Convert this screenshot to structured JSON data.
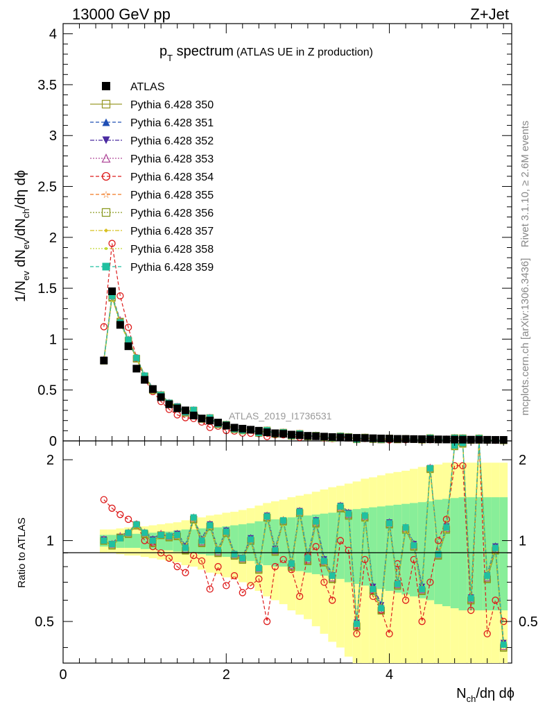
{
  "header": {
    "left": "13000 GeV pp",
    "right": "Z+Jet"
  },
  "side_labels": {
    "rivet": "Rivet 3.1.10, ≥ 2.6M events",
    "mcplots": "mcplots.cern.ch [arXiv:1306.3436]"
  },
  "chart_data": {
    "type": "line",
    "title_main": "p",
    "title_sub": "T",
    "title_rest": " spectrum",
    "title_paren": "(ATLAS UE in Z production)",
    "watermark": "ATLAS_2019_I1736531",
    "xlabel": "N",
    "xlabel_sub": "ch",
    "xlabel_rest": "/dη dϕ",
    "ylabel_top": "1/N",
    "ylabel_ratio": "Ratio to ATLAS",
    "xlim": [
      0,
      5.5
    ],
    "ylim_top": [
      0,
      4.1
    ],
    "ylim_ratio": [
      0.35,
      2.35
    ],
    "xticks": [
      "0",
      "2",
      "4"
    ],
    "yticks_top": [
      "0",
      "0.5",
      "1",
      "1.5",
      "2",
      "2.5",
      "3",
      "3.5",
      "4"
    ],
    "yticks_ratio": [
      "0.5",
      "1",
      "2"
    ],
    "legend": [
      {
        "name": "ATLAS",
        "color": "#000000",
        "marker": "square-filled",
        "dash": ""
      },
      {
        "name": "Pythia 6.428 350",
        "color": "#9a9a2a",
        "marker": "square-open",
        "dash": ""
      },
      {
        "name": "Pythia 6.428 351",
        "color": "#1f4fb5",
        "marker": "triangle-up",
        "dash": "5,3"
      },
      {
        "name": "Pythia 6.428 352",
        "color": "#4a2aa0",
        "marker": "triangle-down",
        "dash": "6,2,2,2"
      },
      {
        "name": "Pythia 6.428 353",
        "color": "#b04a9a",
        "marker": "triangle-open",
        "dash": "2,2"
      },
      {
        "name": "Pythia 6.428 354",
        "color": "#dd1a1a",
        "marker": "circle-open",
        "dash": "5,3"
      },
      {
        "name": "Pythia 6.428 355",
        "color": "#f07820",
        "marker": "star",
        "dash": "5,3"
      },
      {
        "name": "Pythia 6.428 356",
        "color": "#8a9a20",
        "marker": "square-open",
        "dash": "2,2"
      },
      {
        "name": "Pythia 6.428 357",
        "color": "#d8c020",
        "marker": "diamond",
        "dash": "6,2,2,2"
      },
      {
        "name": "Pythia 6.428 358",
        "color": "#c0d830",
        "marker": "dot",
        "dash": "2,2"
      },
      {
        "name": "Pythia 6.428 359",
        "color": "#20c0a0",
        "marker": "square-filled",
        "dash": "5,3"
      }
    ],
    "x": [
      0.5,
      0.6,
      0.7,
      0.8,
      0.9,
      1.0,
      1.1,
      1.2,
      1.3,
      1.4,
      1.5,
      1.6,
      1.7,
      1.8,
      1.9,
      2.0,
      2.1,
      2.2,
      2.3,
      2.4,
      2.5,
      2.6,
      2.7,
      2.8,
      2.9,
      3.0,
      3.1,
      3.2,
      3.3,
      3.4,
      3.5,
      3.6,
      3.7,
      3.8,
      3.9,
      4.0,
      4.1,
      4.2,
      4.3,
      4.4,
      4.5,
      4.6,
      4.7,
      4.8,
      4.9,
      5.0,
      5.1,
      5.2,
      5.3,
      5.4
    ],
    "atlas": [
      0.79,
      1.47,
      1.14,
      0.93,
      0.71,
      0.6,
      0.51,
      0.43,
      0.36,
      0.32,
      0.3,
      0.25,
      0.22,
      0.2,
      0.18,
      0.15,
      0.13,
      0.12,
      0.11,
      0.1,
      0.085,
      0.075,
      0.07,
      0.062,
      0.056,
      0.05,
      0.046,
      0.042,
      0.038,
      0.035,
      0.032,
      0.03,
      0.028,
      0.026,
      0.024,
      0.022,
      0.02,
      0.019,
      0.018,
      0.017,
      0.016,
      0.015,
      0.014,
      0.013,
      0.012,
      0.012,
      0.011,
      0.011,
      0.01,
      0.01
    ],
    "ratio_bands": {
      "green_half": [
        0.05,
        0.05,
        0.06,
        0.06,
        0.06,
        0.07,
        0.07,
        0.08,
        0.08,
        0.09,
        0.1,
        0.1,
        0.11,
        0.12,
        0.12,
        0.13,
        0.14,
        0.15,
        0.16,
        0.18,
        0.19,
        0.2,
        0.2,
        0.22,
        0.23,
        0.24,
        0.25,
        0.26,
        0.27,
        0.28,
        0.3,
        0.31,
        0.32,
        0.33,
        0.34,
        0.35,
        0.36,
        0.37,
        0.38,
        0.39,
        0.4,
        0.42,
        0.43,
        0.44,
        0.45,
        0.45,
        0.45,
        0.45,
        0.45,
        0.45
      ],
      "yellow_half": [
        0.1,
        0.1,
        0.11,
        0.12,
        0.12,
        0.13,
        0.14,
        0.15,
        0.16,
        0.17,
        0.19,
        0.2,
        0.22,
        0.24,
        0.25,
        0.27,
        0.28,
        0.3,
        0.32,
        0.35,
        0.38,
        0.4,
        0.42,
        0.45,
        0.47,
        0.49,
        0.52,
        0.55,
        0.58,
        0.6,
        0.63,
        0.66,
        0.7,
        0.72,
        0.75,
        0.78,
        0.8,
        0.82,
        0.85,
        0.88,
        0.9,
        0.92,
        0.95,
        0.95,
        0.95,
        0.95,
        0.95,
        0.95,
        0.95,
        0.95
      ]
    },
    "ratios": {
      "Pythia 6.428 350": [
        1.0,
        0.96,
        1.03,
        1.06,
        1.14,
        1.06,
        0.98,
        1.05,
        1.03,
        1.04,
        0.92,
        1.2,
        0.98,
        1.13,
        0.9,
        1.07,
        0.88,
        0.85,
        1.0,
        0.78,
        1.22,
        0.91,
        1.18,
        0.8,
        1.27,
        0.84,
        1.16,
        0.83,
        0.72,
        1.32,
        1.24,
        0.48,
        1.22,
        0.65,
        0.55,
        1.15,
        0.68,
        1.1,
        0.95,
        0.65,
        1.85,
        0.88,
        1.1,
        2.25,
        2.3,
        0.6,
        2.4,
        0.72,
        0.92,
        0.4
      ],
      "Pythia 6.428 351": [
        1.02,
        0.98,
        1.04,
        1.08,
        1.16,
        1.08,
        1.02,
        1.06,
        1.05,
        1.07,
        0.96,
        1.23,
        1.02,
        1.16,
        0.93,
        1.1,
        0.9,
        0.87,
        1.03,
        0.8,
        1.25,
        0.94,
        1.2,
        0.83,
        1.3,
        0.88,
        1.2,
        0.86,
        0.75,
        1.36,
        1.28,
        0.5,
        1.25,
        0.68,
        0.58,
        1.18,
        0.7,
        1.13,
        0.98,
        0.68,
        1.88,
        0.9,
        1.14,
        2.28,
        2.32,
        0.62,
        2.4,
        0.75,
        0.96,
        0.42
      ],
      "Pythia 6.428 354": [
        1.42,
        1.32,
        1.25,
        1.2,
        1.15,
        1.0,
        0.95,
        0.9,
        0.86,
        0.8,
        0.76,
        0.88,
        0.84,
        0.66,
        0.8,
        0.68,
        0.74,
        0.64,
        0.68,
        0.72,
        0.5,
        0.8,
        0.85,
        0.78,
        0.62,
        0.88,
        0.95,
        0.7,
        0.6,
        1.0,
        0.92,
        0.45,
        0.85,
        0.62,
        0.55,
        0.45,
        0.82,
        0.6,
        0.85,
        0.5,
        0.7,
        1.0,
        1.2,
        1.9,
        1.9,
        0.55,
        2.4,
        0.45,
        0.6,
        0.5
      ],
      "Pythia 6.428 359": [
        1.0,
        0.97,
        1.02,
        1.07,
        1.15,
        1.07,
        1.0,
        1.05,
        1.04,
        1.05,
        0.94,
        1.22,
        1.0,
        1.14,
        0.92,
        1.08,
        0.89,
        0.86,
        1.01,
        0.79,
        1.23,
        0.92,
        1.19,
        0.82,
        1.28,
        0.86,
        1.18,
        0.84,
        0.74,
        1.34,
        1.26,
        0.49,
        1.24,
        0.66,
        0.56,
        1.16,
        0.69,
        1.12,
        0.96,
        0.66,
        1.86,
        0.89,
        1.12,
        2.26,
        2.31,
        0.61,
        2.4,
        0.74,
        0.94,
        0.41
      ]
    },
    "top_scale": {
      "Pythia 6.428 350": [
        1.0,
        0.96,
        1.03,
        1.06,
        1.14,
        1.06,
        0.98,
        1.05,
        1.03,
        1.04,
        0.92,
        1.06,
        0.98,
        1.03,
        0.96,
        1.04
      ],
      "Pythia 6.428 354": [
        1.36,
        1.2,
        1.2,
        1.13,
        1.08,
        0.97,
        0.9,
        0.86,
        0.82,
        0.78,
        0.72,
        0.78,
        0.8,
        0.7,
        0.78,
        0.74
      ]
    }
  }
}
